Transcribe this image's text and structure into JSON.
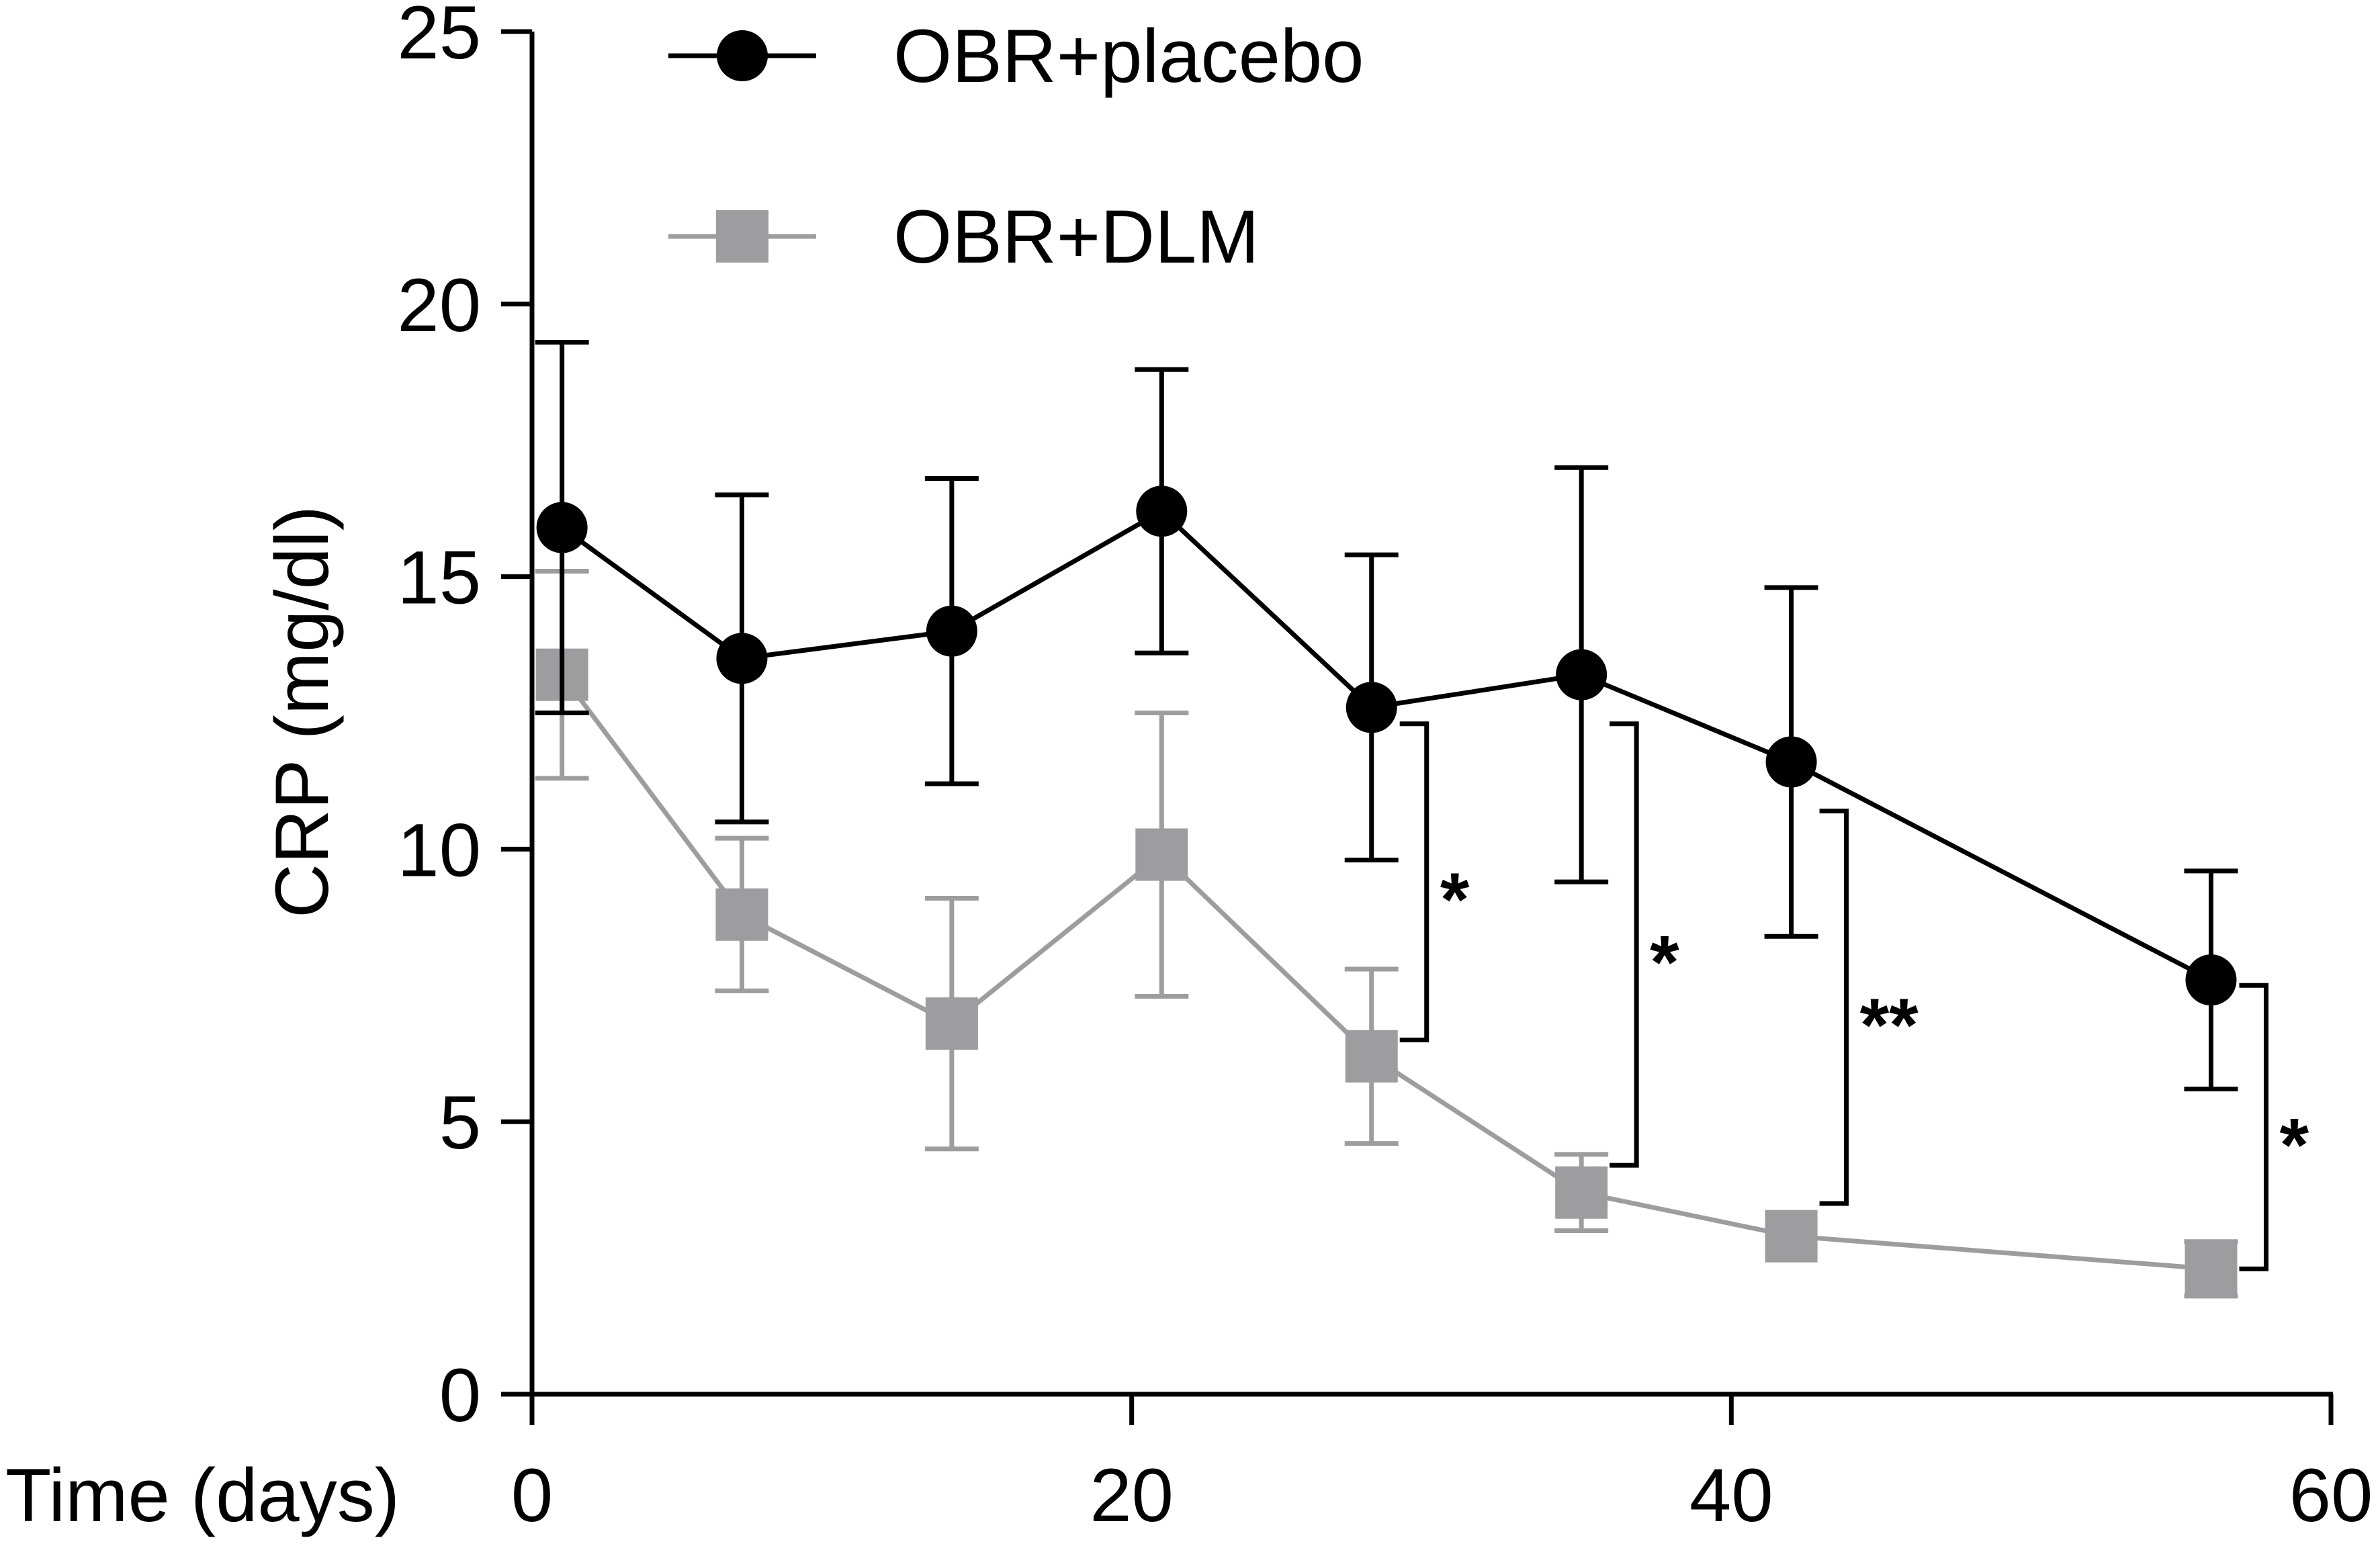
{
  "chart_data": {
    "type": "line",
    "title": "",
    "xlabel": "Time (days)",
    "ylabel": "CRP (mg/dl)",
    "xlim": [
      0,
      60
    ],
    "ylim": [
      0,
      25
    ],
    "x_ticks": [
      "0",
      "20",
      "40",
      "60"
    ],
    "y_ticks": [
      "0",
      "5",
      "10",
      "15",
      "20",
      "25"
    ],
    "x_tick_values": [
      0,
      20,
      40,
      60
    ],
    "y_tick_values": [
      0,
      5,
      10,
      15,
      20,
      25
    ],
    "legend_position": "top",
    "series": [
      {
        "name": "OBR+placebo",
        "marker": "circle",
        "color": "#000000",
        "x": [
          1,
          7,
          14,
          21,
          28,
          35,
          42,
          56
        ],
        "values": [
          15.9,
          13.5,
          14.0,
          16.2,
          12.6,
          13.2,
          11.6,
          7.6
        ],
        "error": [
          3.4,
          3.0,
          2.8,
          2.6,
          2.8,
          3.8,
          3.2,
          2.0
        ]
      },
      {
        "name": "OBR+DLM",
        "marker": "square",
        "color": "#9d9d9f",
        "x": [
          1,
          7,
          14,
          21,
          28,
          35,
          42,
          56
        ],
        "values": [
          13.2,
          8.8,
          6.8,
          9.9,
          6.2,
          3.7,
          2.9,
          2.3
        ],
        "error": [
          1.9,
          1.4,
          2.3,
          2.6,
          1.6,
          0.7,
          0.0,
          0.5
        ]
      }
    ],
    "annotations": [
      {
        "x": 28,
        "upper": 12.3,
        "lower": 6.5,
        "label": "*"
      },
      {
        "x": 35,
        "upper": 12.3,
        "lower": 4.2,
        "label": "*"
      },
      {
        "x": 42,
        "upper": 10.7,
        "lower": 3.5,
        "label": "**"
      },
      {
        "x": 56,
        "upper": 7.5,
        "lower": 2.3,
        "label": "*"
      }
    ]
  }
}
